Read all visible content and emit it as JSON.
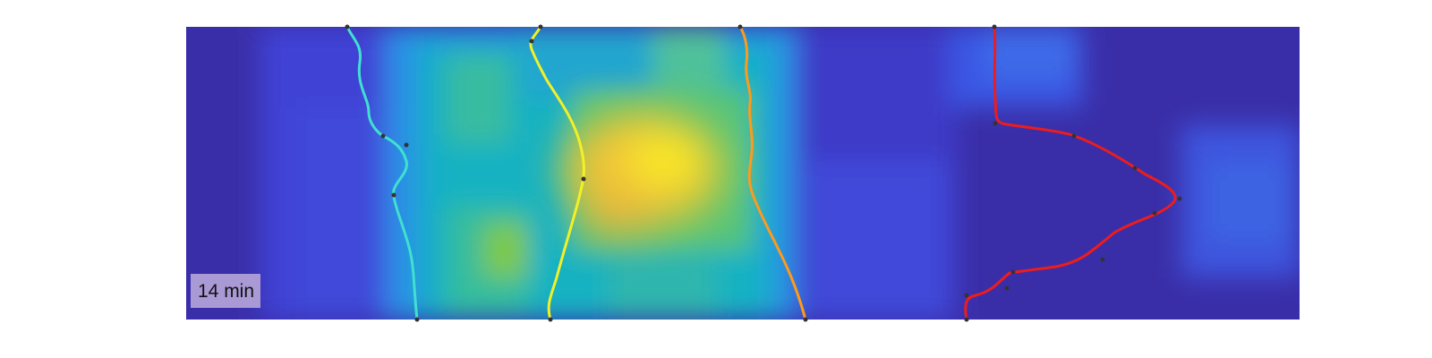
{
  "image": {
    "time_label": "14 min",
    "colors": {
      "background_dark": "#3b2aa8",
      "background_mid": "#3f56e0",
      "teal": "#1ab4c4",
      "green": "#6cc94a",
      "yellow": "#f6f01a",
      "orange_warm": "#f3c03a",
      "label_box": "#a99ad6"
    },
    "traces": [
      {
        "id": "trace-1",
        "color": "#40e0d0"
      },
      {
        "id": "trace-2",
        "color": "#f4f026"
      },
      {
        "id": "trace-3",
        "color": "#ff9a1a"
      },
      {
        "id": "trace-4",
        "color": "#ee1c1c"
      }
    ]
  }
}
